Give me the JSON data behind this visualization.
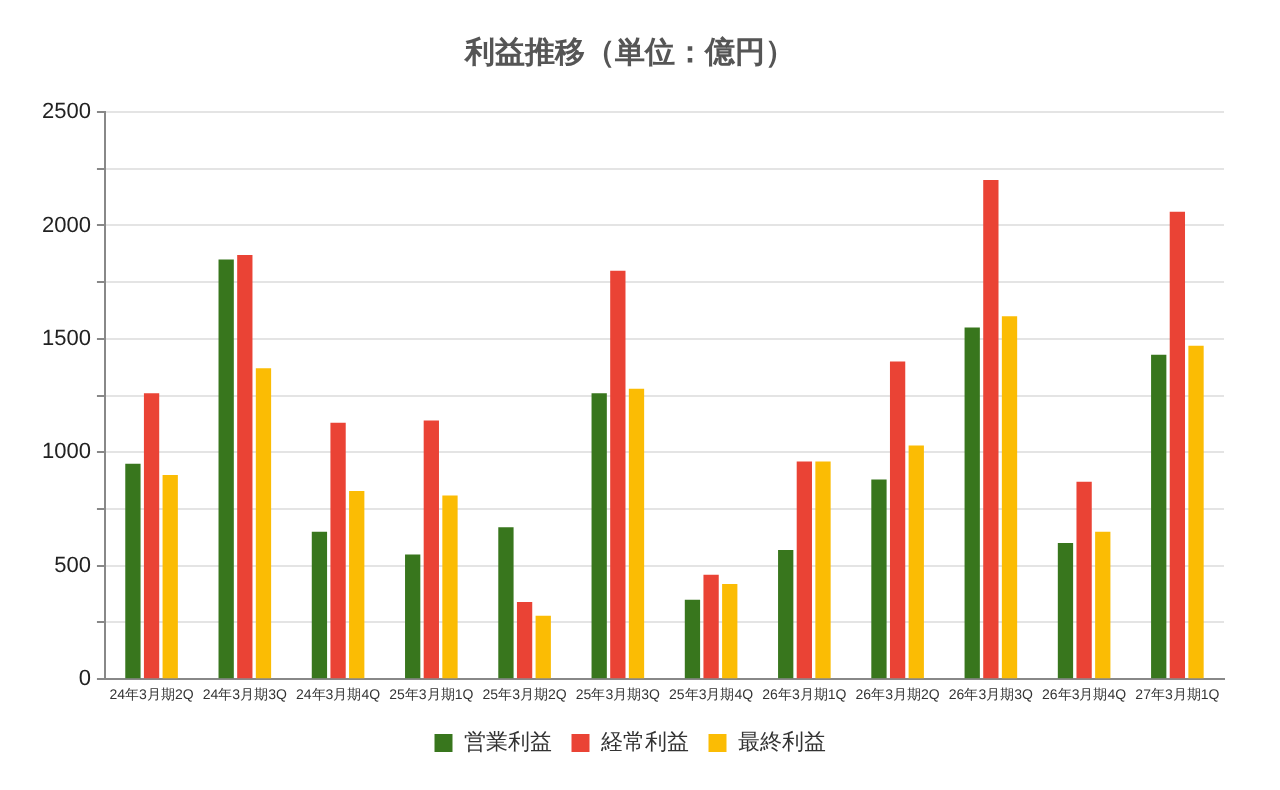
{
  "chart_data": {
    "type": "bar",
    "title": "利益推移（単位：億円）",
    "categories": [
      "24年3月期2Q",
      "24年3月期3Q",
      "24年3月期4Q",
      "25年3月期1Q",
      "25年3月期2Q",
      "25年3月期3Q",
      "25年3月期4Q",
      "26年3月期1Q",
      "26年3月期2Q",
      "26年3月期3Q",
      "26年3月期4Q",
      "27年3月期1Q"
    ],
    "series": [
      {
        "name": "営業利益",
        "color": "#38761d",
        "values": [
          950,
          1850,
          650,
          550,
          670,
          1260,
          350,
          570,
          880,
          1550,
          600,
          1430
        ]
      },
      {
        "name": "経常利益",
        "color": "#ea4335",
        "values": [
          1260,
          1870,
          1130,
          1140,
          340,
          1800,
          460,
          960,
          1400,
          2200,
          870,
          2060
        ]
      },
      {
        "name": "最終利益",
        "color": "#fbbc04",
        "values": [
          900,
          1370,
          830,
          810,
          280,
          1280,
          420,
          960,
          1030,
          1600,
          650,
          1470
        ]
      }
    ],
    "ylim": [
      0,
      2500
    ],
    "yticks": [
      0,
      {
        "value": 250,
        "label": null
      },
      500,
      {
        "value": 750,
        "label": null
      },
      1000,
      {
        "value": 1250,
        "label": null
      },
      1500,
      {
        "value": 1750,
        "label": null
      },
      2000,
      {
        "value": 2250,
        "label": null
      },
      2500
    ],
    "grid": "y",
    "legend": "bottom"
  }
}
